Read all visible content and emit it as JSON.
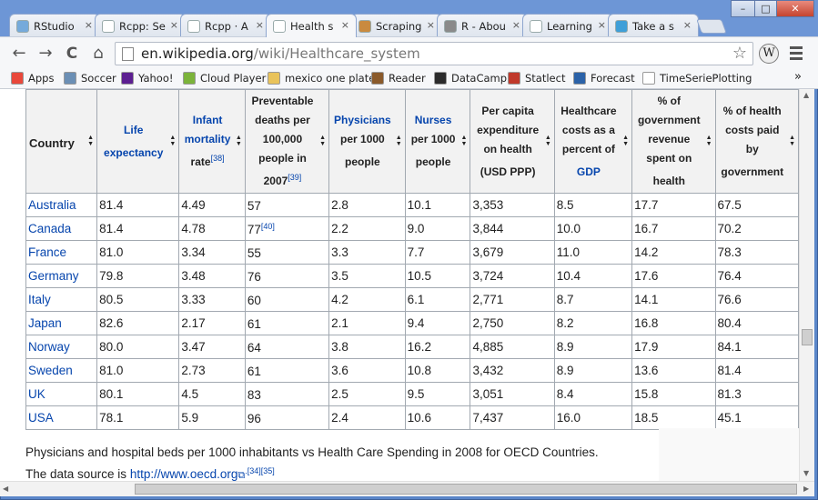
{
  "tabs": [
    {
      "label": "RStudio",
      "fav_color": "#75aadb"
    },
    {
      "label": "Rcpp: Se",
      "fav_color": "#ffffff"
    },
    {
      "label": "Rcpp · A",
      "fav_color": "#ffffff"
    },
    {
      "label": "Health s",
      "fav_color": "#ffffff"
    },
    {
      "label": "Scraping",
      "fav_color": "#c98a3f"
    },
    {
      "label": "R - Abou",
      "fav_color": "#8a8a8a"
    },
    {
      "label": "Learning",
      "fav_color": "#ffffff"
    },
    {
      "label": "Take a s",
      "fav_color": "#3f9fd8"
    }
  ],
  "tab_close": "×",
  "window": {
    "minimize": "–",
    "restore": "□",
    "close": "✕"
  },
  "nav": {
    "back": "←",
    "forward": "→",
    "reload": "C",
    "home": "⌂"
  },
  "address": {
    "host": "en.wikipedia.org",
    "path": "/wiki/Healthcare_system",
    "star": "☆"
  },
  "wiki_button": "W",
  "bookmarks": [
    {
      "label": "Apps",
      "icon": "apps-grid-icon",
      "color": "#e9483b"
    },
    {
      "label": "Soccer",
      "icon": "soccer-icon",
      "color": "#6b8fb5"
    },
    {
      "label": "Yahoo!",
      "icon": "yahoo-icon",
      "color": "#5c1f91"
    },
    {
      "label": "Cloud Player",
      "icon": "cloud-player-icon",
      "color": "#7bb33a"
    },
    {
      "label": "mexico one plate",
      "icon": "folder-icon",
      "color": "#e9c35a"
    },
    {
      "label": "Reader",
      "icon": "reader-icon",
      "color": "#8a5a2b"
    },
    {
      "label": "DataCamp",
      "icon": "datacamp-icon",
      "color": "#2b2b2b"
    },
    {
      "label": "Statlect",
      "icon": "statlect-icon",
      "color": "#c0392b"
    },
    {
      "label": "Forecast",
      "icon": "forecast-icon",
      "color": "#2b62a8"
    },
    {
      "label": "TimeSeriePlotting",
      "icon": "page-icon",
      "color": "#ffffff"
    }
  ],
  "bookmarks_more": "»",
  "table": {
    "headers": [
      {
        "pre": "",
        "link": "",
        "post": "Country",
        "sup": ""
      },
      {
        "pre": "",
        "link": "Life expectancy",
        "post": "",
        "sup": ""
      },
      {
        "pre": "",
        "link": "Infant mortality",
        "post": " rate",
        "sup": "[38]"
      },
      {
        "pre": "Preventable deaths per 100,000 people in 2007",
        "link": "",
        "post": "",
        "sup": "[39]"
      },
      {
        "pre": "",
        "link": "Physicians",
        "post": " per 1000 people",
        "sup": ""
      },
      {
        "pre": "",
        "link": "Nurses",
        "post": " per 1000 people",
        "sup": ""
      },
      {
        "pre": "Per capita expenditure on health (USD PPP)",
        "link": "",
        "post": "",
        "sup": ""
      },
      {
        "pre": "Healthcare costs as a percent of ",
        "link": "GDP",
        "post": "",
        "sup": ""
      },
      {
        "pre": "% of government revenue spent on health",
        "link": "",
        "post": "",
        "sup": ""
      },
      {
        "pre": "% of health costs paid by government",
        "link": "",
        "post": "",
        "sup": ""
      }
    ],
    "sort_glyph": "▲▼",
    "rows": [
      {
        "country": "Australia",
        "cells": [
          "81.4",
          "4.49",
          "57",
          "2.8",
          "10.1",
          "3,353",
          "8.5",
          "17.7",
          "67.5"
        ],
        "sup": ""
      },
      {
        "country": "Canada",
        "cells": [
          "81.4",
          "4.78",
          "77",
          "2.2",
          "9.0",
          "3,844",
          "10.0",
          "16.7",
          "70.2"
        ],
        "sup": "[40]"
      },
      {
        "country": "France",
        "cells": [
          "81.0",
          "3.34",
          "55",
          "3.3",
          "7.7",
          "3,679",
          "11.0",
          "14.2",
          "78.3"
        ],
        "sup": ""
      },
      {
        "country": "Germany",
        "cells": [
          "79.8",
          "3.48",
          "76",
          "3.5",
          "10.5",
          "3,724",
          "10.4",
          "17.6",
          "76.4"
        ],
        "sup": ""
      },
      {
        "country": "Italy",
        "cells": [
          "80.5",
          "3.33",
          "60",
          "4.2",
          "6.1",
          "2,771",
          "8.7",
          "14.1",
          "76.6"
        ],
        "sup": ""
      },
      {
        "country": "Japan",
        "cells": [
          "82.6",
          "2.17",
          "61",
          "2.1",
          "9.4",
          "2,750",
          "8.2",
          "16.8",
          "80.4"
        ],
        "sup": ""
      },
      {
        "country": "Norway",
        "cells": [
          "80.0",
          "3.47",
          "64",
          "3.8",
          "16.2",
          "4,885",
          "8.9",
          "17.9",
          "84.1"
        ],
        "sup": ""
      },
      {
        "country": "Sweden",
        "cells": [
          "81.0",
          "2.73",
          "61",
          "3.6",
          "10.8",
          "3,432",
          "8.9",
          "13.6",
          "81.4"
        ],
        "sup": ""
      },
      {
        "country": "UK",
        "cells": [
          "80.1",
          "4.5",
          "83",
          "2.5",
          "9.5",
          "3,051",
          "8.4",
          "15.8",
          "81.3"
        ],
        "sup": ""
      },
      {
        "country": "USA",
        "cells": [
          "78.1",
          "5.9",
          "96",
          "2.4",
          "10.6",
          "7,437",
          "16.0",
          "18.5",
          "45.1"
        ],
        "sup": ""
      }
    ]
  },
  "caption": {
    "line1": "Physicians and hospital beds per 1000 inhabitants vs Health Care Spending in 2008 for OECD Countries.",
    "line2_prefix": "The data source is ",
    "link": "http://www.oecd.org",
    "ext_icon": "⧉",
    "refs": ".[34][35]"
  }
}
